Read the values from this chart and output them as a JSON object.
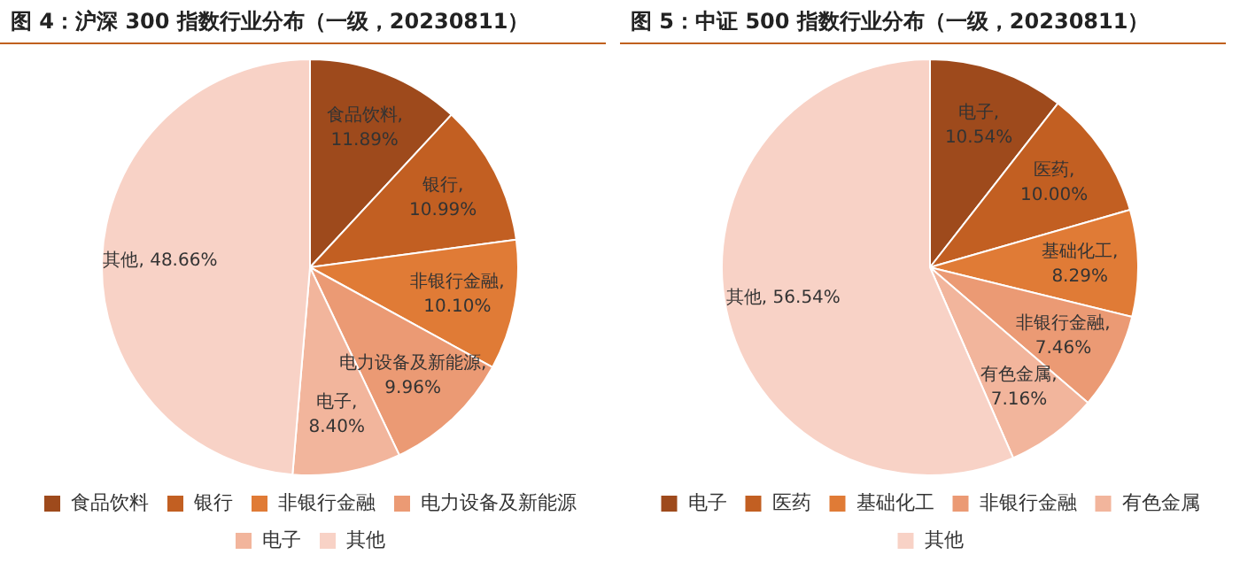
{
  "chart_data": [
    {
      "type": "pie",
      "title": "图 4：沪深 300 指数行业分布（一级，20230811）",
      "categories": [
        "食品饮料",
        "银行",
        "非银行金融",
        "电力设备及新能源",
        "电子",
        "其他"
      ],
      "values": [
        11.89,
        10.99,
        10.1,
        9.96,
        8.4,
        48.66
      ],
      "value_labels": [
        "食品饮料, 11.89%",
        "银行, 10.99%",
        "非银行金融, 10.10%",
        "电力设备及新能源, 9.96%",
        "电子, 8.40%",
        "其他, 48.66%"
      ],
      "colors": [
        "#9e4a1c",
        "#c25f22",
        "#e07b36",
        "#eb9a74",
        "#f2b59c",
        "#f8d2c6"
      ],
      "legend": "bottom"
    },
    {
      "type": "pie",
      "title": "图 5：中证 500 指数行业分布（一级，20230811）",
      "categories": [
        "电子",
        "医药",
        "基础化工",
        "非银行金融",
        "有色金属",
        "其他"
      ],
      "values": [
        10.54,
        10.0,
        8.29,
        7.46,
        7.16,
        56.54
      ],
      "value_labels": [
        "电子, 10.54%",
        "医药, 10.00%",
        "基础化工, 8.29%",
        "非银行金融, 7.46%",
        "有色金属, 7.16%",
        "其他, 56.54%"
      ],
      "colors": [
        "#9e4a1c",
        "#c25f22",
        "#e07b36",
        "#eb9a74",
        "#f2b59c",
        "#f8d2c6"
      ],
      "legend": "bottom"
    }
  ]
}
